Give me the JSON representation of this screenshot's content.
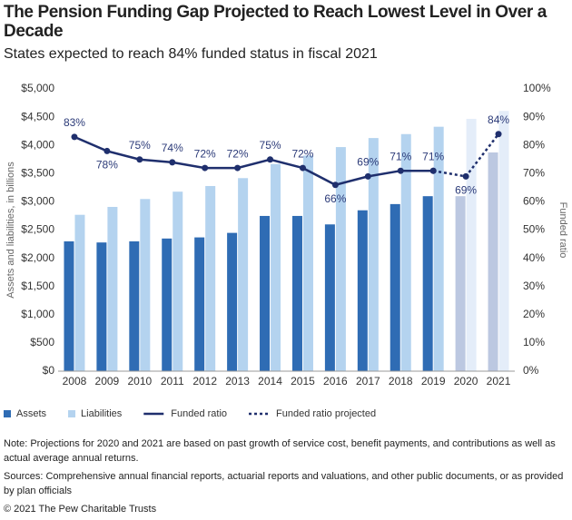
{
  "chart_data": {
    "type": "bar_line",
    "title": "The Pension Funding Gap Projected to Reach Lowest Level in Over a Decade",
    "subtitle": "States expected to reach 84% funded status in fiscal 2021",
    "y_label": "Assets and liabilities, in billions",
    "y2_label": "Funded ratio",
    "categories": [
      "2008",
      "2009",
      "2010",
      "2011",
      "2012",
      "2013",
      "2014",
      "2015",
      "2016",
      "2017",
      "2018",
      "2019",
      "2020",
      "2021"
    ],
    "series": [
      {
        "name": "Assets",
        "type": "bar",
        "color": "#2f6cb4",
        "colors": [
          "#2f6cb4",
          "#2f6cb4",
          "#2f6cb4",
          "#2f6cb4",
          "#2f6cb4",
          "#2f6cb4",
          "#2f6cb4",
          "#2f6cb4",
          "#2f6cb4",
          "#2f6cb4",
          "#2f6cb4",
          "#2f6cb4",
          "#bcc8e1",
          "#bcc8e1"
        ],
        "values": [
          2300,
          2280,
          2300,
          2350,
          2370,
          2450,
          2750,
          2750,
          2600,
          2850,
          2960,
          3100,
          3100,
          3875
        ]
      },
      {
        "name": "Liabilities",
        "type": "bar",
        "color": "#b4d3ef",
        "colors": [
          "#b4d3ef",
          "#b4d3ef",
          "#b4d3ef",
          "#b4d3ef",
          "#b4d3ef",
          "#b4d3ef",
          "#b4d3ef",
          "#b4d3ef",
          "#b4d3ef",
          "#b4d3ef",
          "#b4d3ef",
          "#b4d3ef",
          "#e4edf9",
          "#e4edf9"
        ],
        "values": [
          2770,
          2910,
          3050,
          3180,
          3280,
          3420,
          3670,
          3820,
          3970,
          4130,
          4200,
          4330,
          4470,
          4610
        ]
      },
      {
        "name": "Funded ratio",
        "type": "line",
        "axis": "y2",
        "color": "#1f2f6d",
        "dashed": false,
        "values": [
          83,
          78,
          75,
          74,
          72,
          72,
          75,
          72,
          66,
          69,
          71,
          71,
          null,
          null
        ],
        "value_labels": [
          "83%",
          "78%",
          "75%",
          "74%",
          "72%",
          "72%",
          "75%",
          "72%",
          "66%",
          "69%",
          "71%",
          "71%",
          null,
          null
        ]
      },
      {
        "name": "Funded ratio projected",
        "type": "line",
        "axis": "y2",
        "color": "#1f2f6d",
        "dashed": true,
        "values": [
          null,
          null,
          null,
          null,
          null,
          null,
          null,
          null,
          null,
          null,
          null,
          71,
          69,
          84
        ],
        "value_labels": [
          null,
          null,
          null,
          null,
          null,
          null,
          null,
          null,
          null,
          null,
          null,
          null,
          "69%",
          "84%"
        ]
      }
    ],
    "ylim": [
      0,
      5000
    ],
    "yticks": [
      {
        "value": 0,
        "label": "$0"
      },
      {
        "value": 500,
        "label": "$500"
      },
      {
        "value": 1000,
        "label": "$1,000"
      },
      {
        "value": 1500,
        "label": "$1,500"
      },
      {
        "value": 2000,
        "label": "$2,000"
      },
      {
        "value": 2500,
        "label": "$2,500"
      },
      {
        "value": 3000,
        "label": "$3,000"
      },
      {
        "value": 3500,
        "label": "$3,500"
      },
      {
        "value": 4000,
        "label": "$4,000"
      },
      {
        "value": 4500,
        "label": "$4,500"
      },
      {
        "value": 5000,
        "label": "$5,000"
      }
    ],
    "y2lim": [
      0,
      100
    ],
    "y2ticks": [
      {
        "value": 0,
        "label": "0%"
      },
      {
        "value": 10,
        "label": "10%"
      },
      {
        "value": 20,
        "label": "20%"
      },
      {
        "value": 30,
        "label": "30%"
      },
      {
        "value": 40,
        "label": "40%"
      },
      {
        "value": 50,
        "label": "50%"
      },
      {
        "value": 60,
        "label": "60%"
      },
      {
        "value": 70,
        "label": "70%"
      },
      {
        "value": 80,
        "label": "80%"
      },
      {
        "value": 90,
        "label": "90%"
      },
      {
        "value": 100,
        "label": "100%"
      }
    ],
    "grid": false
  },
  "note": "Note: Projections for 2020 and 2021 are based on past growth of service cost, benefit payments, and contributions as well as actual average annual returns.",
  "sources": "Sources: Comprehensive annual financial reports, actuarial reports and valuations, and other public documents, or as provided by plan officials",
  "copyright": "© 2021 The Pew Charitable Trusts"
}
